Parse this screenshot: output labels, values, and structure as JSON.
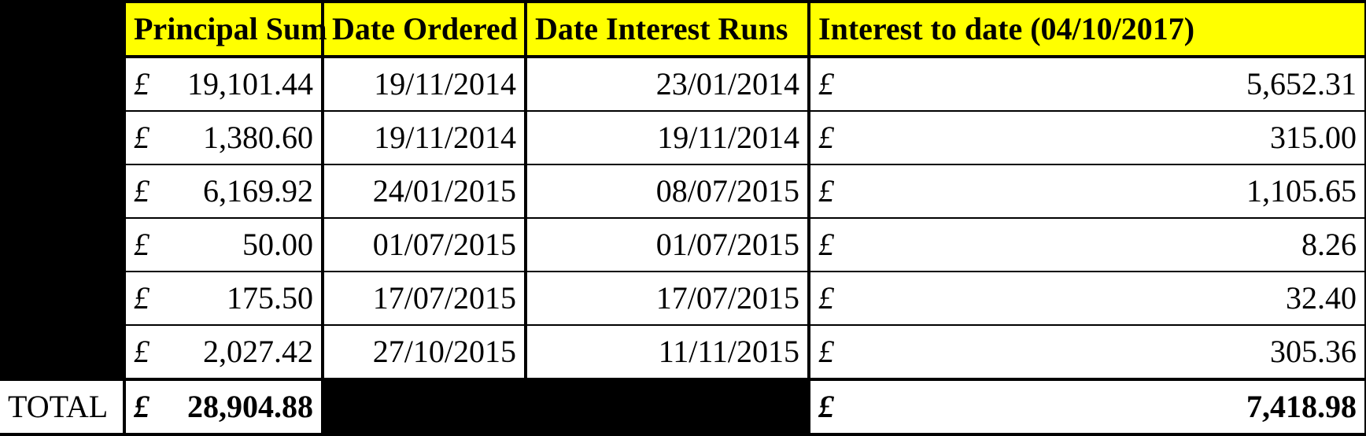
{
  "currency_symbol": "£",
  "header_bg": "#ffff00",
  "border_color": "#000000",
  "columns": [
    "Principal Sum",
    "Date Ordered",
    "Date Interest Runs",
    "Interest to date (04/10/2017)"
  ],
  "rows": [
    {
      "principal": "19,101.44",
      "date_ordered": "19/11/2014",
      "date_runs": "23/01/2014",
      "interest": "5,652.31"
    },
    {
      "principal": "1,380.60",
      "date_ordered": "19/11/2014",
      "date_runs": "19/11/2014",
      "interest": "315.00"
    },
    {
      "principal": "6,169.92",
      "date_ordered": "24/01/2015",
      "date_runs": "08/07/2015",
      "interest": "1,105.65"
    },
    {
      "principal": "50.00",
      "date_ordered": "01/07/2015",
      "date_runs": "01/07/2015",
      "interest": "8.26"
    },
    {
      "principal": "175.50",
      "date_ordered": "17/07/2015",
      "date_runs": "17/07/2015",
      "interest": "32.40"
    },
    {
      "principal": "2,027.42",
      "date_ordered": "27/10/2015",
      "date_runs": "11/11/2015",
      "interest": "305.36"
    }
  ],
  "total": {
    "label": "TOTAL",
    "principal": "28,904.88",
    "interest": "7,418.98"
  }
}
